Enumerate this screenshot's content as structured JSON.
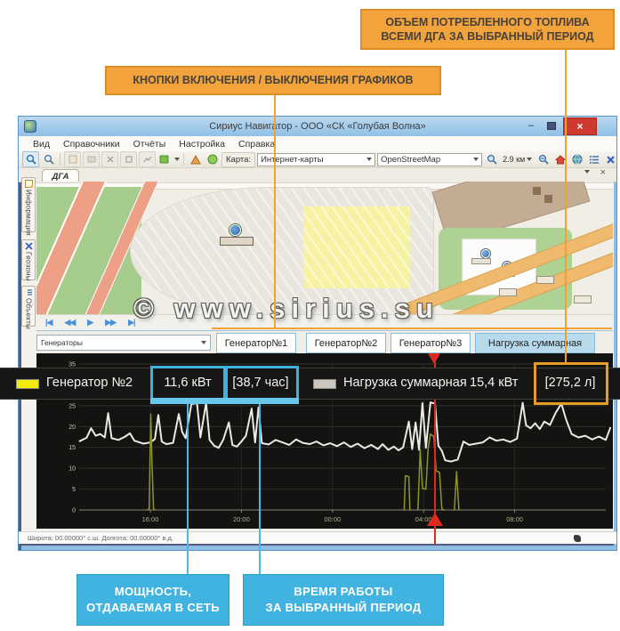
{
  "annotations": {
    "accent_orange": "#F2A33C",
    "accent_blue": "#41B3E0",
    "callout_fuel_line1": "ОБЪЕМ ПОТРЕБЛЕННОГО ТОПЛИВА",
    "callout_fuel_line2": "ВСЕМИ ДГА ЗА ВЫБРАННЫЙ ПЕРИОД",
    "callout_buttons": "КНОПКИ ВКЛЮЧЕНИЯ / ВЫКЛЮЧЕНИЯ ГРАФИКОВ",
    "callout_power_line1": "МОЩНОСТЬ,",
    "callout_power_line2": "ОТДАВАЕМАЯ В СЕТЬ",
    "callout_time_line1": "ВРЕМЯ РАБОТЫ",
    "callout_time_line2": "ЗА ВЫБРАННЫЙ ПЕРИОД",
    "watermark": "© www.sirius.su"
  },
  "window": {
    "title": "Сириус Навигатор - ООО «СК «Голубая Волна»",
    "controls": {
      "minimize": "–",
      "close": "×"
    },
    "menu": [
      "Вид",
      "Справочники",
      "Отчёты",
      "Настройка",
      "Справка"
    ],
    "toolbar": {
      "map_label": "Карта:",
      "map_kind": "Интернет-карты",
      "map_provider": "OpenStreetMap",
      "scale": "2.9 км",
      "icons": [
        "zoom-select",
        "zoom-search",
        "grid",
        "edit",
        "cut",
        "fit",
        "track",
        "layers-cube",
        "measure-triangle",
        "sphere",
        "zoom-out",
        "zoom-in",
        "home",
        "globe",
        "list",
        "close-route",
        "notes",
        "panel"
      ]
    },
    "doc_tab": "ДГА",
    "side_tabs": [
      "Информация",
      "Геозоны",
      "Объекты"
    ],
    "playback": [
      "|◀",
      "◀◀",
      "▶",
      "▶▶",
      "▶|"
    ],
    "series_combo": "Генераторы",
    "graph_buttons": [
      "Генератор№1",
      "Генератор№2",
      "Генератор№3",
      "Нагрузка суммарная"
    ],
    "status": "Широта: 00.00000° с.ш.  Долгота: 00.00000° в.д."
  },
  "legend": {
    "gen2_color": "#F3EA0B",
    "gen2_label": "Генератор №2",
    "gen2_power": "11,6 кВт",
    "gen2_hours": "[38,7 час]",
    "load_color": "#CBC6BF",
    "load_label": "Нагрузка суммарная",
    "load_power": "15,4 кВт",
    "load_fuel": "[275,2 л]"
  },
  "chart_data": {
    "type": "line",
    "title": "",
    "bg": "#131311",
    "ylim": [
      0,
      35
    ],
    "y_ticks": [
      0,
      5,
      10,
      15,
      20,
      25,
      30,
      35
    ],
    "x_tick_hours": [
      16,
      20,
      24,
      28,
      32
    ],
    "x_tick_labels": [
      "16:00",
      "20:00",
      "00:00",
      "04:00",
      "08:00"
    ],
    "x_range_hours": [
      12.9,
      36.3
    ],
    "cursor_hour": 28.55,
    "cursor_color": "#DD2A20",
    "legend_position": "top-overlay",
    "grid": true,
    "series": [
      {
        "name": "Нагрузка суммарная",
        "color": "#E9E9E6",
        "width": 2,
        "points": [
          [
            12.9,
            16.5
          ],
          [
            13.2,
            17.3
          ],
          [
            13.4,
            19.6
          ],
          [
            13.6,
            17.8
          ],
          [
            13.8,
            18.2
          ],
          [
            14.0,
            17.4
          ],
          [
            14.15,
            23.2
          ],
          [
            14.3,
            17.2
          ],
          [
            14.6,
            16.8
          ],
          [
            14.9,
            17.6
          ],
          [
            15.1,
            18.4
          ],
          [
            15.3,
            16.6
          ],
          [
            15.7,
            15.9
          ],
          [
            16.0,
            16.2
          ],
          [
            16.2,
            17.0
          ],
          [
            16.35,
            22.8
          ],
          [
            16.5,
            16.4
          ],
          [
            16.7,
            15.8
          ],
          [
            17.0,
            16.1
          ],
          [
            17.25,
            23.0
          ],
          [
            17.4,
            18.7
          ],
          [
            17.55,
            17.2
          ],
          [
            17.8,
            25.4
          ],
          [
            18.05,
            25.6
          ],
          [
            18.2,
            17.4
          ],
          [
            18.45,
            25.7
          ],
          [
            18.6,
            16.8
          ],
          [
            18.8,
            15.4
          ],
          [
            19.0,
            14.9
          ],
          [
            19.2,
            16.8
          ],
          [
            19.45,
            21.0
          ],
          [
            19.6,
            15.6
          ],
          [
            19.8,
            15.2
          ],
          [
            20.0,
            16.4
          ],
          [
            20.2,
            17.8
          ],
          [
            20.45,
            24.3
          ],
          [
            20.6,
            16.2
          ],
          [
            20.75,
            24.6
          ],
          [
            20.9,
            16.0
          ],
          [
            21.2,
            15.7
          ],
          [
            21.5,
            16.8
          ],
          [
            21.8,
            16.2
          ],
          [
            22.1,
            15.6
          ],
          [
            22.4,
            16.9
          ],
          [
            22.7,
            16.1
          ],
          [
            23.0,
            15.8
          ],
          [
            23.3,
            16.4
          ],
          [
            23.6,
            15.5
          ],
          [
            23.9,
            16.0
          ],
          [
            24.2,
            15.3
          ],
          [
            24.5,
            16.2
          ],
          [
            24.8,
            15.1
          ],
          [
            25.1,
            15.9
          ],
          [
            25.4,
            14.8
          ],
          [
            25.7,
            15.6
          ],
          [
            26.0,
            14.6
          ],
          [
            26.2,
            15.8
          ],
          [
            26.45,
            14.4
          ],
          [
            26.7,
            15.2
          ],
          [
            26.9,
            14.3
          ],
          [
            27.1,
            15.0
          ],
          [
            27.35,
            21.2
          ],
          [
            27.5,
            14.6
          ],
          [
            27.65,
            21.0
          ],
          [
            27.8,
            14.4
          ],
          [
            27.95,
            25.6
          ],
          [
            28.1,
            14.9
          ],
          [
            28.3,
            25.8
          ],
          [
            28.5,
            25.5
          ],
          [
            28.65,
            15.4
          ],
          [
            28.8,
            14.2
          ],
          [
            28.95,
            11.9
          ],
          [
            29.2,
            11.6
          ],
          [
            29.5,
            12.1
          ],
          [
            29.75,
            16.4
          ],
          [
            30.0,
            15.6
          ],
          [
            30.3,
            15.9
          ],
          [
            30.6,
            16.2
          ],
          [
            30.9,
            17.4
          ],
          [
            31.2,
            16.6
          ],
          [
            31.5,
            16.9
          ],
          [
            31.8,
            16.3
          ],
          [
            32.1,
            17.1
          ],
          [
            32.35,
            25.7
          ],
          [
            32.5,
            20.3
          ],
          [
            32.7,
            19.6
          ],
          [
            32.9,
            20.8
          ],
          [
            33.1,
            19.4
          ],
          [
            33.3,
            21.2
          ],
          [
            33.55,
            20.4
          ],
          [
            33.8,
            23.3
          ],
          [
            34.05,
            25.5
          ],
          [
            34.25,
            21.8
          ],
          [
            34.5,
            18.2
          ],
          [
            34.8,
            17.4
          ],
          [
            35.1,
            17.8
          ],
          [
            35.4,
            16.9
          ],
          [
            35.7,
            17.6
          ],
          [
            36.0,
            16.8
          ],
          [
            36.2,
            19.7
          ]
        ]
      },
      {
        "name": "Генератор №2",
        "color": "#8F9429",
        "width": 1.5,
        "points": [
          [
            15.88,
            0
          ],
          [
            15.95,
            0.3
          ],
          [
            16.02,
            23.0
          ],
          [
            16.08,
            10.5
          ],
          [
            16.14,
            0.3
          ],
          [
            16.2,
            0
          ],
          null,
          [
            27.15,
            0
          ],
          [
            27.2,
            8.2
          ],
          [
            27.35,
            8.0
          ],
          [
            27.4,
            0
          ],
          null,
          [
            27.75,
            0
          ],
          [
            27.85,
            14.5
          ],
          [
            27.95,
            5.2
          ],
          [
            28.1,
            5.0
          ],
          [
            28.2,
            14.8
          ],
          [
            28.3,
            18.2
          ],
          [
            28.45,
            17.6
          ],
          [
            28.55,
            9.4
          ],
          [
            28.7,
            9.0
          ],
          [
            28.8,
            0.3
          ],
          [
            28.9,
            0
          ],
          null,
          [
            29.35,
            0
          ],
          [
            29.45,
            9.2
          ],
          [
            29.55,
            0
          ]
        ]
      }
    ]
  }
}
